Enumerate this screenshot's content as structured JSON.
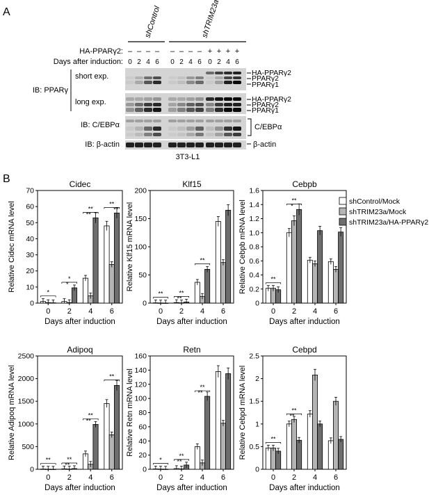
{
  "panel_a": {
    "label": "A",
    "group_labels": [
      "shControl",
      "shTRIM23a"
    ],
    "row_headers": [
      "HA-PPARγ2:",
      "Days after induction:"
    ],
    "ha_signs": [
      "–",
      "–",
      "–",
      "–",
      "–",
      "–",
      "–",
      "–",
      "+",
      "+",
      "+",
      "+"
    ],
    "days": [
      "0",
      "2",
      "4",
      "6",
      "0",
      "2",
      "4",
      "6",
      "0",
      "2",
      "4",
      "6"
    ],
    "ib_labels": {
      "ppar": "IB: PPARγ",
      "short": "short exp.",
      "long": "long exp.",
      "cebpa": "IB: C/EBPα",
      "actin": "IB: β-actin"
    },
    "band_labels": {
      "short": [
        "HA-PPARγ2",
        "PPARγ2",
        "PPARγ1"
      ],
      "long": [
        "HA-PPARγ2",
        "PPARγ2",
        "PPARγ1"
      ],
      "cebpa": "C/EBPα",
      "actin": "β-actin"
    },
    "cell_line": "3T3-L1"
  },
  "panel_b": {
    "label": "B",
    "legend": [
      "shControl/Mock",
      "shTRIM23a/Mock",
      "shTRIM23a/HA-PPARγ2"
    ],
    "xlabel": "Days after induction",
    "categories": [
      "0",
      "2",
      "4",
      "6"
    ]
  },
  "colors": {
    "series": [
      "#ffffff",
      "#b4b4b4",
      "#6e6e6e"
    ],
    "blot_bg": "#d4d4d4"
  },
  "chart_data": [
    {
      "type": "bar",
      "title": "Cidec",
      "ylabel": "Relative Cidec mRNA level",
      "ylim": [
        0,
        70
      ],
      "yticks": [
        0,
        10,
        20,
        30,
        40,
        50,
        60,
        70
      ],
      "categories": [
        "0",
        "2",
        "4",
        "6"
      ],
      "series": [
        {
          "name": "shControl/Mock",
          "values": [
            1,
            1,
            15.5,
            48
          ]
        },
        {
          "name": "shTRIM23a/Mock",
          "values": [
            0.3,
            0.3,
            4.5,
            24
          ]
        },
        {
          "name": "shTRIM23a/HA-PPARγ2",
          "values": [
            0.2,
            9.5,
            53,
            56
          ]
        }
      ],
      "annotations": [
        "*",
        "*",
        "*",
        "**",
        "**",
        "**",
        "**"
      ]
    },
    {
      "type": "bar",
      "title": "Klf15",
      "ylabel": "Relative Klf15 mRNA level",
      "ylim": [
        0,
        200
      ],
      "yticks": [
        0,
        50,
        100,
        150,
        200
      ],
      "categories": [
        "0",
        "2",
        "4",
        "6"
      ],
      "series": [
        {
          "name": "shControl/Mock",
          "values": [
            0.5,
            1,
            37,
            145
          ]
        },
        {
          "name": "shTRIM23a/Mock",
          "values": [
            0.3,
            0.5,
            12,
            72
          ]
        },
        {
          "name": "shTRIM23a/HA-PPARγ2",
          "values": [
            0.2,
            2,
            60,
            165
          ]
        }
      ],
      "annotations": [
        "**",
        "**",
        "**",
        "**"
      ]
    },
    {
      "type": "bar",
      "title": "Cebpb",
      "ylabel": "Relative Cebpb mRNA level",
      "ylim": [
        0,
        1.6
      ],
      "yticks": [
        "0",
        "0.2",
        "0.4",
        "0.6",
        "0.8",
        "1.0",
        "1.2",
        "1.4",
        "1.6"
      ],
      "categories": [
        "0",
        "2",
        "4",
        "6"
      ],
      "series": [
        {
          "name": "shControl/Mock",
          "values": [
            0.21,
            1.0,
            0.61,
            0.59
          ]
        },
        {
          "name": "shTRIM23a/Mock",
          "values": [
            0.21,
            1.17,
            0.56,
            0.48
          ]
        },
        {
          "name": "shTRIM23a/HA-PPARγ2",
          "values": [
            0.19,
            1.33,
            1.03,
            1.01
          ]
        }
      ],
      "annotations": [
        "**",
        "**",
        "*"
      ]
    },
    {
      "type": "bar",
      "title": "Adipoq",
      "ylabel": "Relative Adipoq mRNA level",
      "ylim": [
        0,
        2500
      ],
      "yticks": [
        0,
        500,
        1000,
        1500,
        2000,
        2500
      ],
      "categories": [
        "0",
        "2",
        "4",
        "6"
      ],
      "series": [
        {
          "name": "shControl/Mock",
          "values": [
            5,
            10,
            340,
            1450
          ]
        },
        {
          "name": "shTRIM23a/Mock",
          "values": [
            3,
            5,
            110,
            760
          ]
        },
        {
          "name": "shTRIM23a/HA-PPARγ2",
          "values": [
            2,
            15,
            990,
            1850
          ]
        }
      ],
      "annotations": [
        "**",
        "**",
        "**",
        "**",
        "**",
        "**"
      ]
    },
    {
      "type": "bar",
      "title": "Retn",
      "ylabel": "Relative Retn mRNA level",
      "ylim": [
        0,
        160
      ],
      "yticks": [
        0,
        20,
        40,
        60,
        80,
        100,
        120,
        140,
        160
      ],
      "categories": [
        "0",
        "2",
        "4",
        "6"
      ],
      "series": [
        {
          "name": "shControl/Mock",
          "values": [
            0.5,
            1,
            32,
            138
          ]
        },
        {
          "name": "shTRIM23a/Mock",
          "values": [
            0.3,
            0.5,
            9,
            65
          ]
        },
        {
          "name": "shTRIM23a/HA-PPARγ2",
          "values": [
            0.2,
            6,
            103,
            135
          ]
        }
      ],
      "annotations": [
        "*",
        "**",
        "**",
        "**",
        "**"
      ]
    },
    {
      "type": "bar",
      "title": "Cebpd",
      "ylabel": "Relative Cebpd mRNA level",
      "ylim": [
        0,
        2.5
      ],
      "yticks": [
        "0",
        "0.5",
        "1",
        "1.5",
        "2",
        "2.5"
      ],
      "categories": [
        "0",
        "2",
        "4",
        "6"
      ],
      "series": [
        {
          "name": "shControl/Mock",
          "values": [
            0.47,
            1.0,
            1.22,
            0.63
          ]
        },
        {
          "name": "shTRIM23a/Mock",
          "values": [
            0.47,
            1.1,
            2.08,
            1.5
          ]
        },
        {
          "name": "shTRIM23a/HA-PPARγ2",
          "values": [
            0.4,
            0.64,
            1.0,
            0.66
          ]
        }
      ],
      "annotations": [
        "**",
        "**",
        "**"
      ]
    }
  ]
}
